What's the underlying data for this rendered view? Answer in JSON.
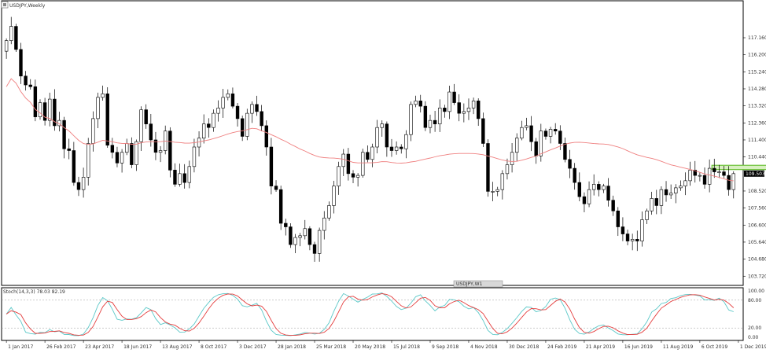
{
  "colors": {
    "background": "#ffffff",
    "frame": "#000000",
    "candle_up_fill": "#ffffff",
    "candle_down_fill": "#000000",
    "candle_outline": "#000000",
    "moving_average": "#ef7f7f",
    "stoch_main": "#5bc8c8",
    "stoch_signal": "#e43d3d",
    "highlight_fill": "#d8f0c0",
    "highlight_stroke": "#6cc23a",
    "price_tag": "#000000",
    "price_tag_text": "#ffffff",
    "stoch_level_line": "#9a9a9a"
  },
  "header": {
    "symbol_title": "USDJPY,Weekly",
    "stoch_title": "Stoch(14,3,3) 78.03 82.19"
  },
  "toolbar_badge": {
    "label": "USDJPY,W1"
  },
  "chart_data": [
    {
      "type": "candlestick",
      "title": "USDJPY,Weekly",
      "y_axis_labels": [
        "117.160",
        "116.200",
        "115.240",
        "114.280",
        "113.320",
        "112.360",
        "111.400",
        "110.440",
        "109.503",
        "108.520",
        "107.560",
        "106.600",
        "105.640",
        "104.680",
        "103.720"
      ],
      "y_axis_values": [
        117.16,
        116.2,
        115.24,
        114.28,
        113.32,
        112.36,
        111.4,
        110.44,
        109.503,
        108.52,
        107.56,
        106.6,
        105.64,
        104.68,
        103.72
      ],
      "ylim": [
        103.2,
        118.8
      ],
      "current_price_label": "109.503",
      "current_price": 109.503,
      "x_tick_labels": [
        "1 Jan 2017",
        "26 Feb 2017",
        "23 Apr 2017",
        "18 Jun 2017",
        "13 Aug 2017",
        "8 Oct 2017",
        "3 Dec 2017",
        "28 Jan 2018",
        "25 Mar 2018",
        "20 May 2018",
        "15 Jul 2018",
        "9 Sep 2018",
        "4 Nov 2018",
        "30 Dec 2018",
        "24 Feb 2019",
        "21 Apr 2019",
        "16 Jun 2019",
        "11 Aug 2019",
        "6 Oct 2019",
        "1 Dec 2019"
      ],
      "x_tick_bar_index": [
        0,
        8,
        16,
        24,
        32,
        40,
        48,
        56,
        64,
        72,
        80,
        88,
        96,
        104,
        112,
        120,
        128,
        136,
        144,
        152
      ],
      "highlight_zone": {
        "bar_start": 147,
        "bar_end": 160,
        "y_low": 109.73,
        "y_high": 109.97
      },
      "ohlc_close": [
        117.0,
        117.8,
        116.5,
        115.0,
        114.5,
        114.4,
        112.7,
        113.5,
        112.5,
        113.7,
        112.2,
        112.5,
        110.9,
        110.8,
        109.0,
        108.6,
        109.3,
        111.2,
        112.6,
        113.8,
        114.0,
        111.1,
        110.7,
        110.1,
        110.7,
        111.2,
        110.0,
        111.3,
        113.1,
        112.3,
        111.4,
        110.7,
        110.8,
        111.9,
        109.7,
        108.9,
        109.5,
        109.0,
        109.9,
        111.0,
        111.5,
        112.3,
        112.1,
        112.9,
        113.2,
        113.8,
        114.0,
        113.3,
        112.6,
        111.6,
        112.9,
        113.4,
        113.0,
        112.2,
        111.0,
        108.8,
        108.6,
        106.7,
        106.5,
        105.5,
        105.9,
        106.0,
        106.4,
        105.5,
        105.0,
        106.3,
        107.0,
        107.7,
        108.8,
        109.9,
        110.6,
        109.5,
        109.3,
        109.4,
        110.7,
        110.3,
        111.0,
        112.1,
        112.3,
        111.0,
        110.8,
        111.0,
        110.9,
        111.7,
        113.4,
        113.6,
        113.3,
        112.1,
        112.5,
        112.3,
        113.2,
        113.0,
        114.1,
        113.5,
        112.9,
        113.0,
        113.2,
        113.6,
        112.6,
        111.2,
        108.5,
        108.5,
        108.6,
        109.5,
        110.0,
        110.7,
        111.5,
        112.1,
        112.2,
        111.3,
        110.5,
        111.9,
        111.6,
        112.0,
        111.9,
        111.2,
        110.3,
        109.8,
        109.0,
        108.2,
        107.8,
        108.6,
        108.9,
        108.6,
        108.8,
        108.0,
        107.4,
        106.5,
        106.1,
        105.7,
        105.8,
        105.7,
        106.9,
        107.4,
        108.1,
        107.7,
        108.6,
        108.3,
        108.4,
        108.7,
        108.8,
        109.1,
        109.7,
        109.4,
        109.4,
        108.9,
        109.8,
        109.6,
        109.6,
        109.4,
        108.6,
        109.5
      ],
      "stochastic": {
        "title": "Stoch(14,3,3) 78.03 82.19",
        "main_value": 78.03,
        "signal_value": 82.19,
        "y_axis_labels": [
          "100.00",
          "80.00",
          "20.00",
          "0.00"
        ],
        "levels": [
          80,
          20
        ],
        "ylim": [
          0,
          100
        ]
      }
    }
  ]
}
